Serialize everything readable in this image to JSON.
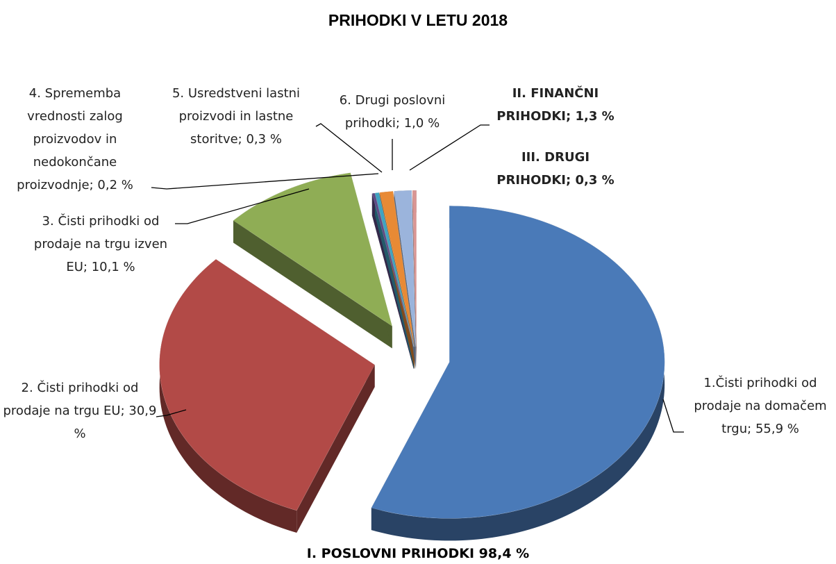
{
  "chart_data": {
    "type": "pie",
    "title": "PRIHODKI V LETU 2018",
    "categories": [
      "1.Čisti prihodki od prodaje na domačem trgu;",
      "2. Čisti prihodki od prodaje na trgu EU;",
      "3. Čisti prihodki od prodaje na trgu izven EU;",
      "4. Sprememba vrednosti zalog proizvodov in nedokončane proizvodnje;",
      "5. Usredstveni lastni proizvodi in lastne storitve;",
      "6. Drugi poslovni prihodki;",
      "II. FINANČNI PRIHODKI;",
      "III. DRUGI PRIHODKI;"
    ],
    "values": [
      55.9,
      30.9,
      10.1,
      0.2,
      0.3,
      1.0,
      1.3,
      0.3
    ],
    "value_labels": [
      "55,9 %",
      "30,9 %",
      "10,1 %",
      "0,2 %",
      "0,3 %",
      "1,0 %",
      "1,3 %",
      "0,3 %"
    ],
    "colors": [
      "#4a7ab8",
      "#b24a47",
      "#8fad55",
      "#5e4a86",
      "#3fa3c1",
      "#e88a35",
      "#9bb4dc",
      "#d99694"
    ],
    "annotation": "I. POSLOVNI PRIHODKI 98,4 %"
  }
}
